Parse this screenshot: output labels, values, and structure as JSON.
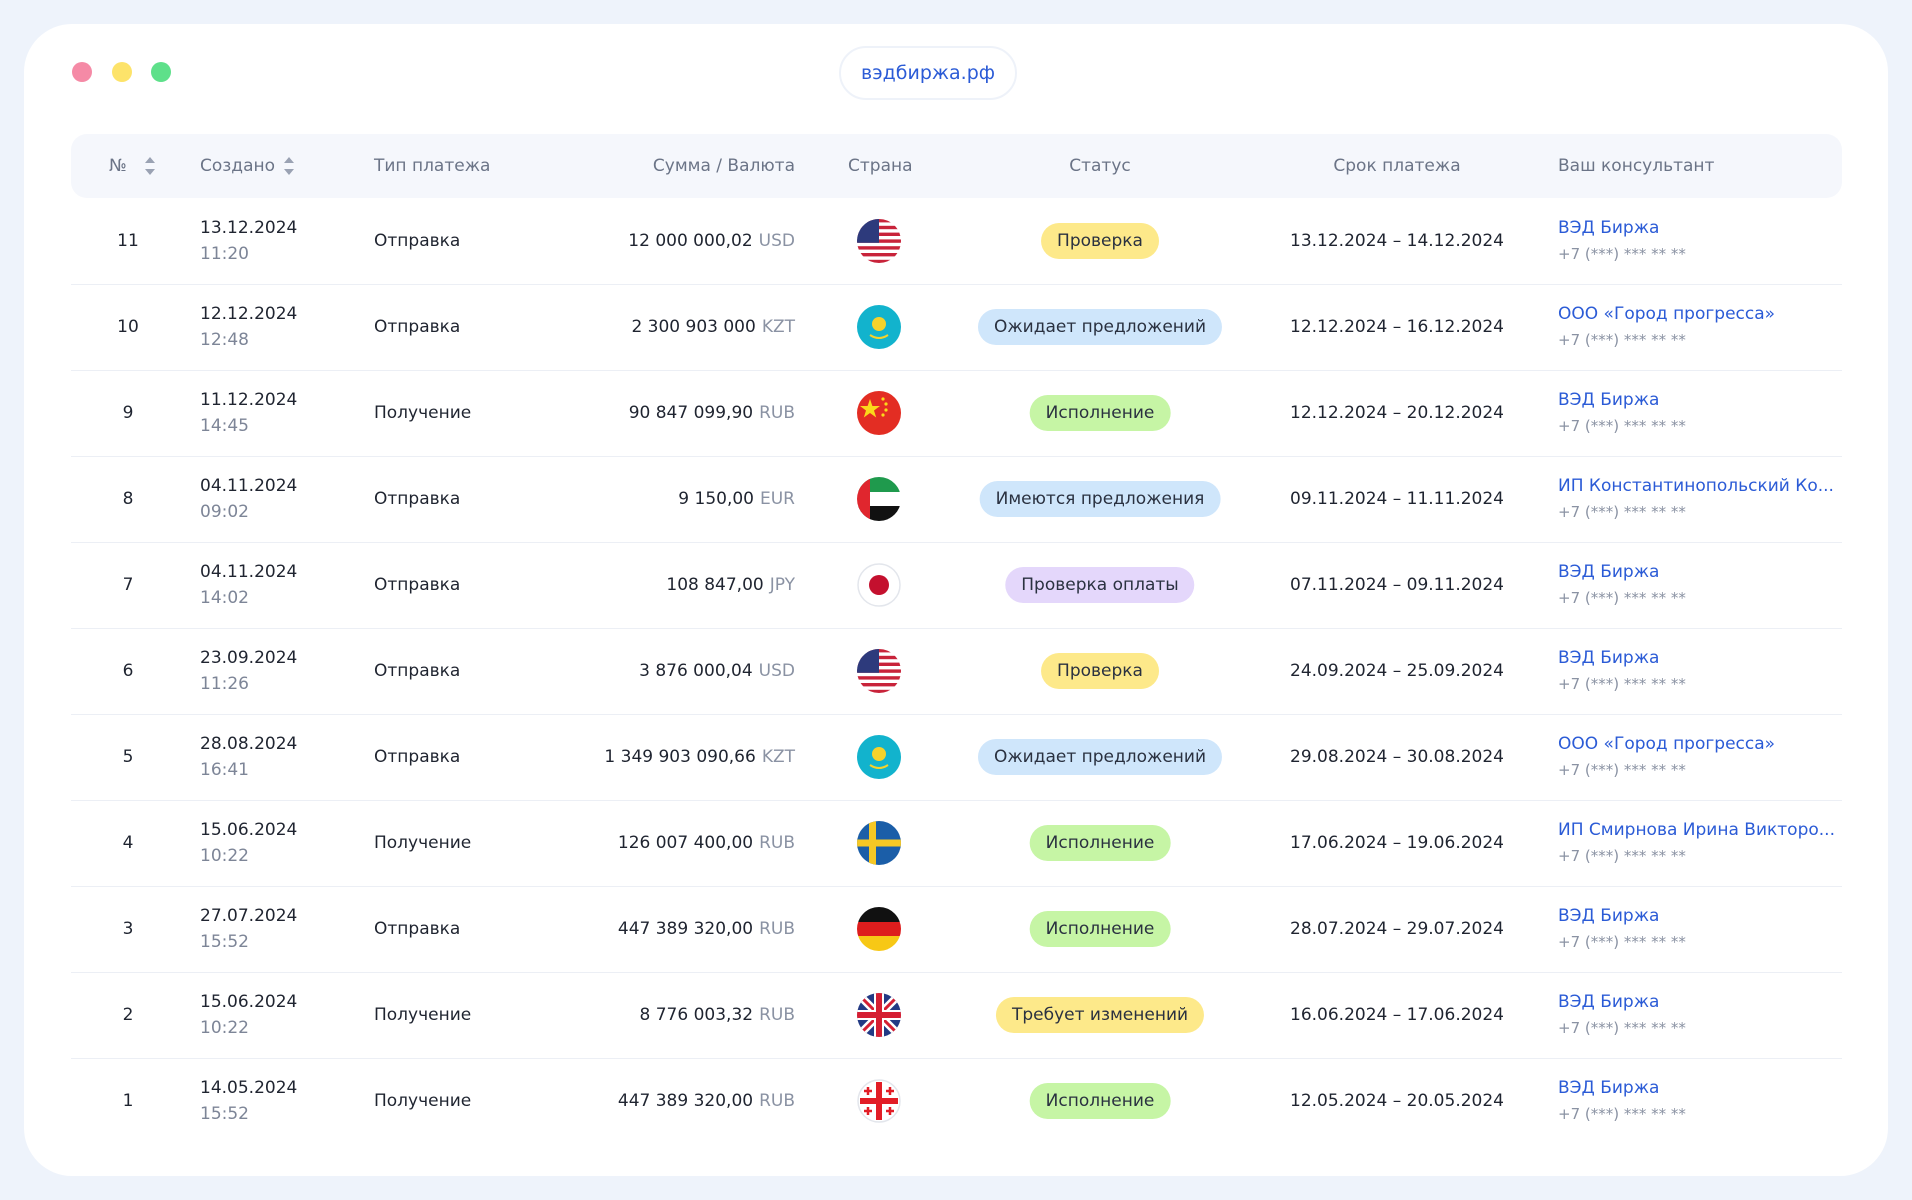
{
  "header": {
    "url": "вэдбиржа.рф"
  },
  "table": {
    "columns": [
      "№",
      "Создано",
      "Тип платежа",
      "Сумма / Валюта",
      "Страна",
      "Статус",
      "Срок платежа",
      "Ваш консультант"
    ],
    "rows": [
      {
        "number": "11",
        "date": "13.12.2024",
        "time": "11:20",
        "type": "Отправка",
        "amount": "12 000 000,02",
        "currency": "USD",
        "status": "Проверка",
        "status_color": "#fde98a",
        "term": "13.12.2024 – 14.12.2024",
        "consultant": "ВЭД Биржа",
        "phone": "+7 (***) *** ** **"
      },
      {
        "number": "10",
        "date": "12.12.2024",
        "time": "12:48",
        "type": "Отправка",
        "amount": "2 300 903 000",
        "currency": "KZT",
        "status": "Ожидает предложений",
        "status_color": "#cfe6fb",
        "term": "12.12.2024 – 16.12.2024",
        "consultant": "ООО «Город прогресса»",
        "phone": "+7 (***) *** ** **"
      },
      {
        "number": "9",
        "date": "11.12.2024",
        "time": "14:45",
        "type": "Получение",
        "amount": "90 847 099,90",
        "currency": "RUB",
        "status": "Исполнение",
        "status_color": "#c6f5a5",
        "term": "12.12.2024 – 20.12.2024",
        "consultant": "ВЭД Биржа",
        "phone": "+7 (***) *** ** **"
      },
      {
        "number": "8",
        "date": "04.11.2024",
        "time": "09:02",
        "type": "Отправка",
        "amount": "9 150,00",
        "currency": "EUR",
        "status": "Имеются предложения",
        "status_color": "#cfe6fb",
        "term": "09.11.2024 – 11.11.2024",
        "consultant": "ИП Константинопольский Ко...",
        "phone": "+7 (***) *** ** **"
      },
      {
        "number": "7",
        "date": "04.11.2024",
        "time": "14:02",
        "type": "Отправка",
        "amount": "108 847,00",
        "currency": "JPY",
        "status": "Проверка оплаты",
        "status_color": "#e4d7fb",
        "term": "07.11.2024 – 09.11.2024",
        "consultant": "ВЭД Биржа",
        "phone": "+7 (***) *** ** **"
      },
      {
        "number": "6",
        "date": "23.09.2024",
        "time": "11:26",
        "type": "Отправка",
        "amount": "3 876 000,04",
        "currency": "USD",
        "status": "Проверка",
        "status_color": "#fde98a",
        "term": "24.09.2024 – 25.09.2024",
        "consultant": "ВЭД Биржа",
        "phone": "+7 (***) *** ** **"
      },
      {
        "number": "5",
        "date": "28.08.2024",
        "time": "16:41",
        "type": "Отправка",
        "amount": "1 349 903 090,66",
        "currency": "KZT",
        "status": "Ожидает предложений",
        "status_color": "#cfe6fb",
        "term": "29.08.2024 – 30.08.2024",
        "consultant": "ООО «Город прогресса»",
        "phone": "+7 (***) *** ** **"
      },
      {
        "number": "4",
        "date": "15.06.2024",
        "time": "10:22",
        "type": "Получение",
        "amount": "126 007 400,00",
        "currency": "RUB",
        "status": "Исполнение",
        "status_color": "#c6f5a5",
        "term": "17.06.2024 – 19.06.2024",
        "consultant": "ИП Смирнова Ирина Викторо...",
        "phone": "+7 (***) *** ** **"
      },
      {
        "number": "3",
        "date": "27.07.2024",
        "time": "15:52",
        "type": "Отправка",
        "amount": "447 389 320,00",
        "currency": "RUB",
        "status": "Исполнение",
        "status_color": "#c6f5a5",
        "term": "28.07.2024 – 29.07.2024",
        "consultant": "ВЭД Биржа",
        "phone": "+7 (***) *** ** **"
      },
      {
        "number": "2",
        "date": "15.06.2024",
        "time": "10:22",
        "type": "Получение",
        "amount": "8 776 003,32",
        "currency": "RUB",
        "status": "Требует изменений",
        "status_color": "#fde98a",
        "term": "16.06.2024 – 17.06.2024",
        "consultant": "ВЭД Биржа",
        "phone": "+7 (***) *** ** **"
      },
      {
        "number": "1",
        "date": "14.05.2024",
        "time": "15:52",
        "type": "Получение",
        "amount": "447 389 320,00",
        "currency": "RUB",
        "status": "Исполнение",
        "status_color": "#c6f5a5",
        "term": "12.05.2024 – 20.05.2024",
        "consultant": "ВЭД Биржа",
        "phone": "+7 (***) *** ** **"
      }
    ]
  }
}
